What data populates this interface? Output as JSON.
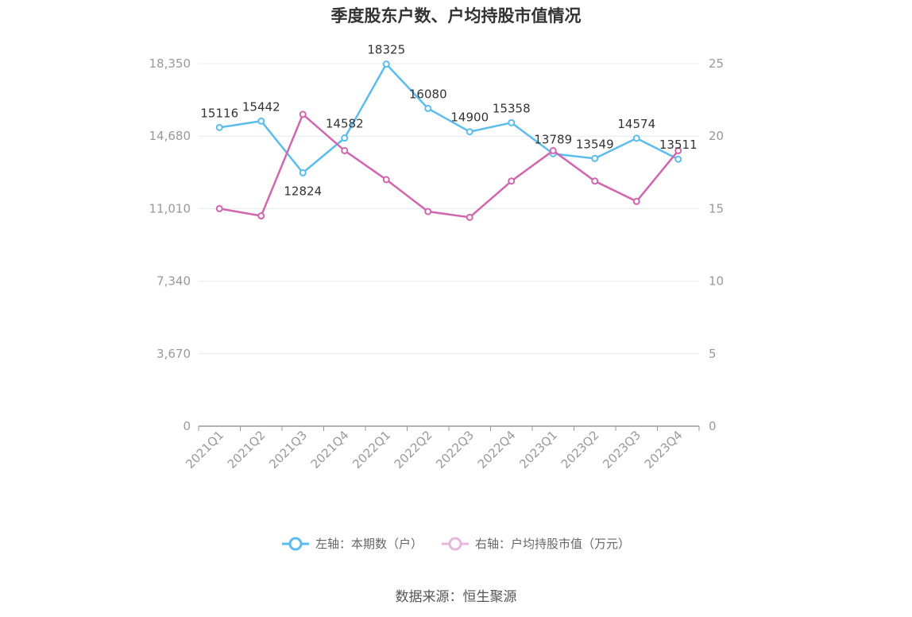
{
  "title": "季度股东户数、户均持股市值情况",
  "source": "数据来源：恒生聚源",
  "chart_data": {
    "type": "line",
    "title": "季度股东户数、户均持股市值情况",
    "categories": [
      "2021Q1",
      "2021Q2",
      "2021Q3",
      "2021Q4",
      "2022Q1",
      "2022Q2",
      "2022Q3",
      "2022Q4",
      "2023Q1",
      "2023Q2",
      "2023Q3",
      "2023Q4"
    ],
    "left_axis": {
      "ticks": [
        "0",
        "3,670",
        "7,340",
        "11,010",
        "14,680",
        "18,350"
      ],
      "ylim": [
        0,
        18350
      ]
    },
    "right_axis": {
      "ticks": [
        "0",
        "5",
        "10",
        "15",
        "20",
        "25"
      ],
      "ylim": [
        0,
        25
      ]
    },
    "grid": true,
    "legend_position": "bottom",
    "series": [
      {
        "name": "左轴：本期数（户）",
        "axis": "left",
        "color": "#5bbcee",
        "values": [
          15116,
          15442,
          12824,
          14582,
          18325,
          16080,
          14900,
          15358,
          13789,
          13549,
          14574,
          13511
        ],
        "labels": [
          "15116",
          "15442",
          "12824",
          "14582",
          "18325",
          "16080",
          "14900",
          "15358",
          "13789",
          "13549",
          "14574",
          "13511"
        ]
      },
      {
        "name": "右轴：户均持股市值（万元）",
        "axis": "right",
        "color": "#d065b0",
        "values": [
          15.0,
          14.5,
          21.5,
          19.0,
          17.0,
          14.8,
          14.4,
          16.9,
          19.0,
          16.9,
          15.5,
          19.0
        ]
      }
    ]
  }
}
